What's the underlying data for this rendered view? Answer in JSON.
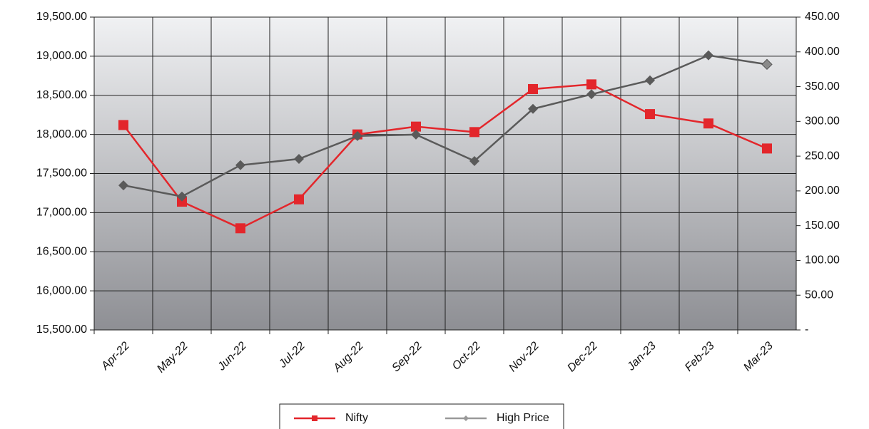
{
  "chart_data": {
    "type": "line",
    "categories": [
      "Apr-22",
      "May-22",
      "Jun-22",
      "Jul-22",
      "Aug-22",
      "Sep-22",
      "Oct-22",
      "Nov-22",
      "Dec-22",
      "Jan-23",
      "Feb-23",
      "Mar-23"
    ],
    "series": [
      {
        "name": "Nifty",
        "color": "#e3262b",
        "values": [
          18120,
          17140,
          16800,
          17170,
          18000,
          18100,
          18030,
          18580,
          18640,
          18260,
          18140,
          17820
        ]
      },
      {
        "name": "High Price",
        "color": "#5a5a5a",
        "axis": "y2",
        "values": [
          208,
          192,
          237,
          246,
          279,
          281,
          243,
          318,
          339,
          359,
          395,
          382
        ]
      }
    ],
    "ylim": [
      15500,
      19500
    ],
    "yticks": [
      {
        "value": 15500,
        "label": "15,500.00"
      },
      {
        "value": 16000,
        "label": "16,000.00"
      },
      {
        "value": 16500,
        "label": "16,500.00"
      },
      {
        "value": 17000,
        "label": "17,000.00"
      },
      {
        "value": 17500,
        "label": "17,500.00"
      },
      {
        "value": 18000,
        "label": "18,000.00"
      },
      {
        "value": 18500,
        "label": "18,500.00"
      },
      {
        "value": 19000,
        "label": "19,000.00"
      },
      {
        "value": 19500,
        "label": "19,500.00"
      }
    ],
    "y2lim": [
      0,
      450
    ],
    "y2ticks": [
      {
        "value": 0,
        "label": "-"
      },
      {
        "value": 50,
        "label": "50.00"
      },
      {
        "value": 100,
        "label": "100.00"
      },
      {
        "value": 150,
        "label": "150.00"
      },
      {
        "value": 200,
        "label": "200.00"
      },
      {
        "value": 250,
        "label": "250.00"
      },
      {
        "value": 300,
        "label": "300.00"
      },
      {
        "value": 350,
        "label": "350.00"
      },
      {
        "value": 400,
        "label": "400.00"
      },
      {
        "value": 450,
        "label": "450.00"
      }
    ],
    "grid": true,
    "legend": "bottom"
  }
}
